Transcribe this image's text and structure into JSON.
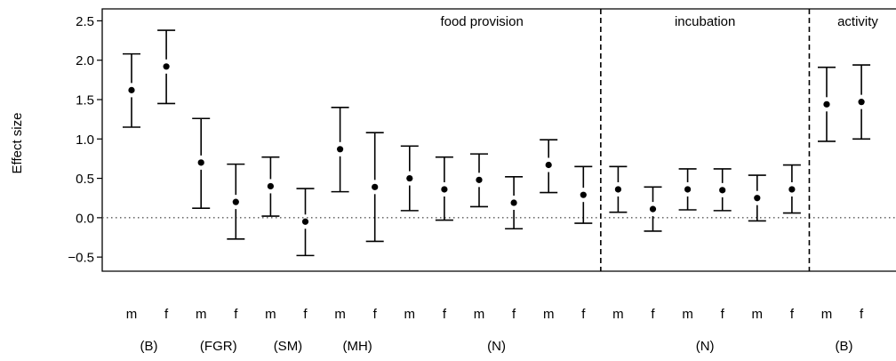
{
  "chart_data": {
    "type": "scatter",
    "ylabel": "Effect size",
    "ylim": [
      -0.6,
      2.55
    ],
    "yticks": [
      -0.5,
      0.0,
      0.5,
      1.0,
      1.5,
      2.0,
      2.5
    ],
    "ytick_labels": [
      "−0.5",
      "0.0",
      "0.5",
      "1.0",
      "1.5",
      "2.0",
      "2.5"
    ],
    "reference_line": 0.0,
    "sections": [
      {
        "label": "food provision",
        "start": 0,
        "end": 13
      },
      {
        "label": "incubation",
        "start": 14,
        "end": 19
      },
      {
        "label": "activity",
        "start": 20,
        "end": 21
      }
    ],
    "groups": [
      {
        "label": "(B)",
        "start": 0,
        "end": 1
      },
      {
        "label": "(FGR)",
        "start": 2,
        "end": 3
      },
      {
        "label": "(SM)",
        "start": 4,
        "end": 5
      },
      {
        "label": "(MH)",
        "start": 6,
        "end": 7
      },
      {
        "label": "(N)",
        "start": 8,
        "end": 13
      },
      {
        "label": "(N)",
        "start": 14,
        "end": 19
      },
      {
        "label": "(B)",
        "start": 20,
        "end": 21
      }
    ],
    "points": [
      {
        "sex": "m",
        "mean": 1.62,
        "lo": 1.15,
        "hi": 2.08
      },
      {
        "sex": "f",
        "mean": 1.92,
        "lo": 1.45,
        "hi": 2.38
      },
      {
        "sex": "m",
        "mean": 0.7,
        "lo": 0.12,
        "hi": 1.26
      },
      {
        "sex": "f",
        "mean": 0.2,
        "lo": -0.27,
        "hi": 0.68
      },
      {
        "sex": "m",
        "mean": 0.4,
        "lo": 0.02,
        "hi": 0.77
      },
      {
        "sex": "f",
        "mean": -0.05,
        "lo": -0.48,
        "hi": 0.37
      },
      {
        "sex": "m",
        "mean": 0.87,
        "lo": 0.33,
        "hi": 1.4
      },
      {
        "sex": "f",
        "mean": 0.39,
        "lo": -0.3,
        "hi": 1.08
      },
      {
        "sex": "m",
        "mean": 0.5,
        "lo": 0.09,
        "hi": 0.91
      },
      {
        "sex": "f",
        "mean": 0.36,
        "lo": -0.03,
        "hi": 0.77
      },
      {
        "sex": "m",
        "mean": 0.48,
        "lo": 0.14,
        "hi": 0.81
      },
      {
        "sex": "f",
        "mean": 0.19,
        "lo": -0.14,
        "hi": 0.52
      },
      {
        "sex": "m",
        "mean": 0.67,
        "lo": 0.32,
        "hi": 0.99
      },
      {
        "sex": "f",
        "mean": 0.29,
        "lo": -0.07,
        "hi": 0.65
      },
      {
        "sex": "m",
        "mean": 0.36,
        "lo": 0.07,
        "hi": 0.65
      },
      {
        "sex": "f",
        "mean": 0.11,
        "lo": -0.17,
        "hi": 0.39
      },
      {
        "sex": "m",
        "mean": 0.36,
        "lo": 0.1,
        "hi": 0.62
      },
      {
        "sex": "f",
        "mean": 0.35,
        "lo": 0.09,
        "hi": 0.62
      },
      {
        "sex": "m",
        "mean": 0.25,
        "lo": -0.04,
        "hi": 0.54
      },
      {
        "sex": "f",
        "mean": 0.36,
        "lo": 0.06,
        "hi": 0.67
      },
      {
        "sex": "m",
        "mean": 1.44,
        "lo": 0.97,
        "hi": 1.91
      },
      {
        "sex": "f",
        "mean": 1.47,
        "lo": 1.0,
        "hi": 1.94
      }
    ]
  }
}
